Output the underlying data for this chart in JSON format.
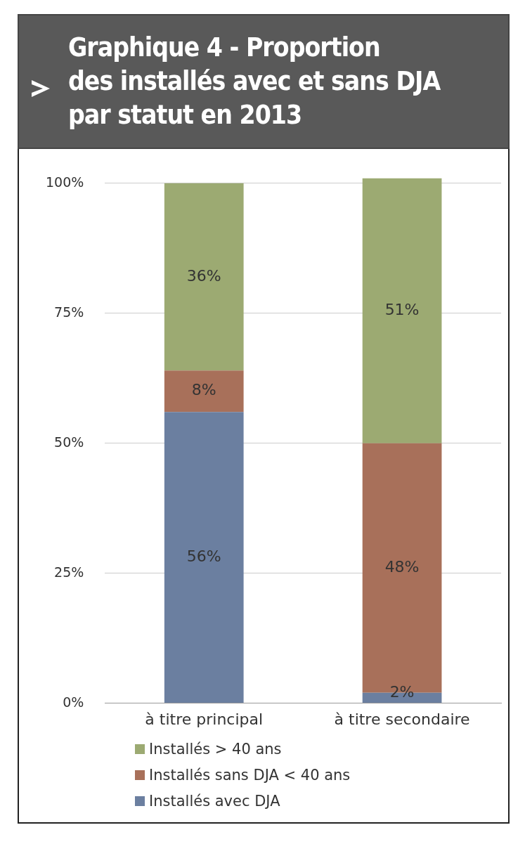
{
  "chart_data": {
    "type": "bar",
    "title": "Graphique 4 - Proportion\ndes installés avec et sans DJA\npar statut en 2013",
    "categories": [
      "à titre principal",
      "à titre secondaire"
    ],
    "stacked": true,
    "series": [
      {
        "name": "Installés avec DJA",
        "color": "#6b7fa0",
        "values": [
          56,
          2
        ],
        "value_labels": [
          "56%",
          "2%"
        ]
      },
      {
        "name": "Installés sans DJA < 40 ans",
        "color": "#a8705a",
        "values": [
          8,
          48
        ],
        "value_labels": [
          "8%",
          "48%"
        ]
      },
      {
        "name": "Installés > 40 ans",
        "color": "#9caa72",
        "values": [
          36,
          51
        ],
        "value_labels": [
          "36%",
          "51%"
        ]
      }
    ],
    "ylim": [
      0,
      101
    ],
    "yticks": [
      {
        "value": 0,
        "label": "0%"
      },
      {
        "value": 25,
        "label": "25%"
      },
      {
        "value": 50,
        "label": "50%"
      },
      {
        "value": 75,
        "label": "75%"
      },
      {
        "value": 100,
        "label": "100%"
      }
    ],
    "grid": "y",
    "legend": "bottom"
  }
}
